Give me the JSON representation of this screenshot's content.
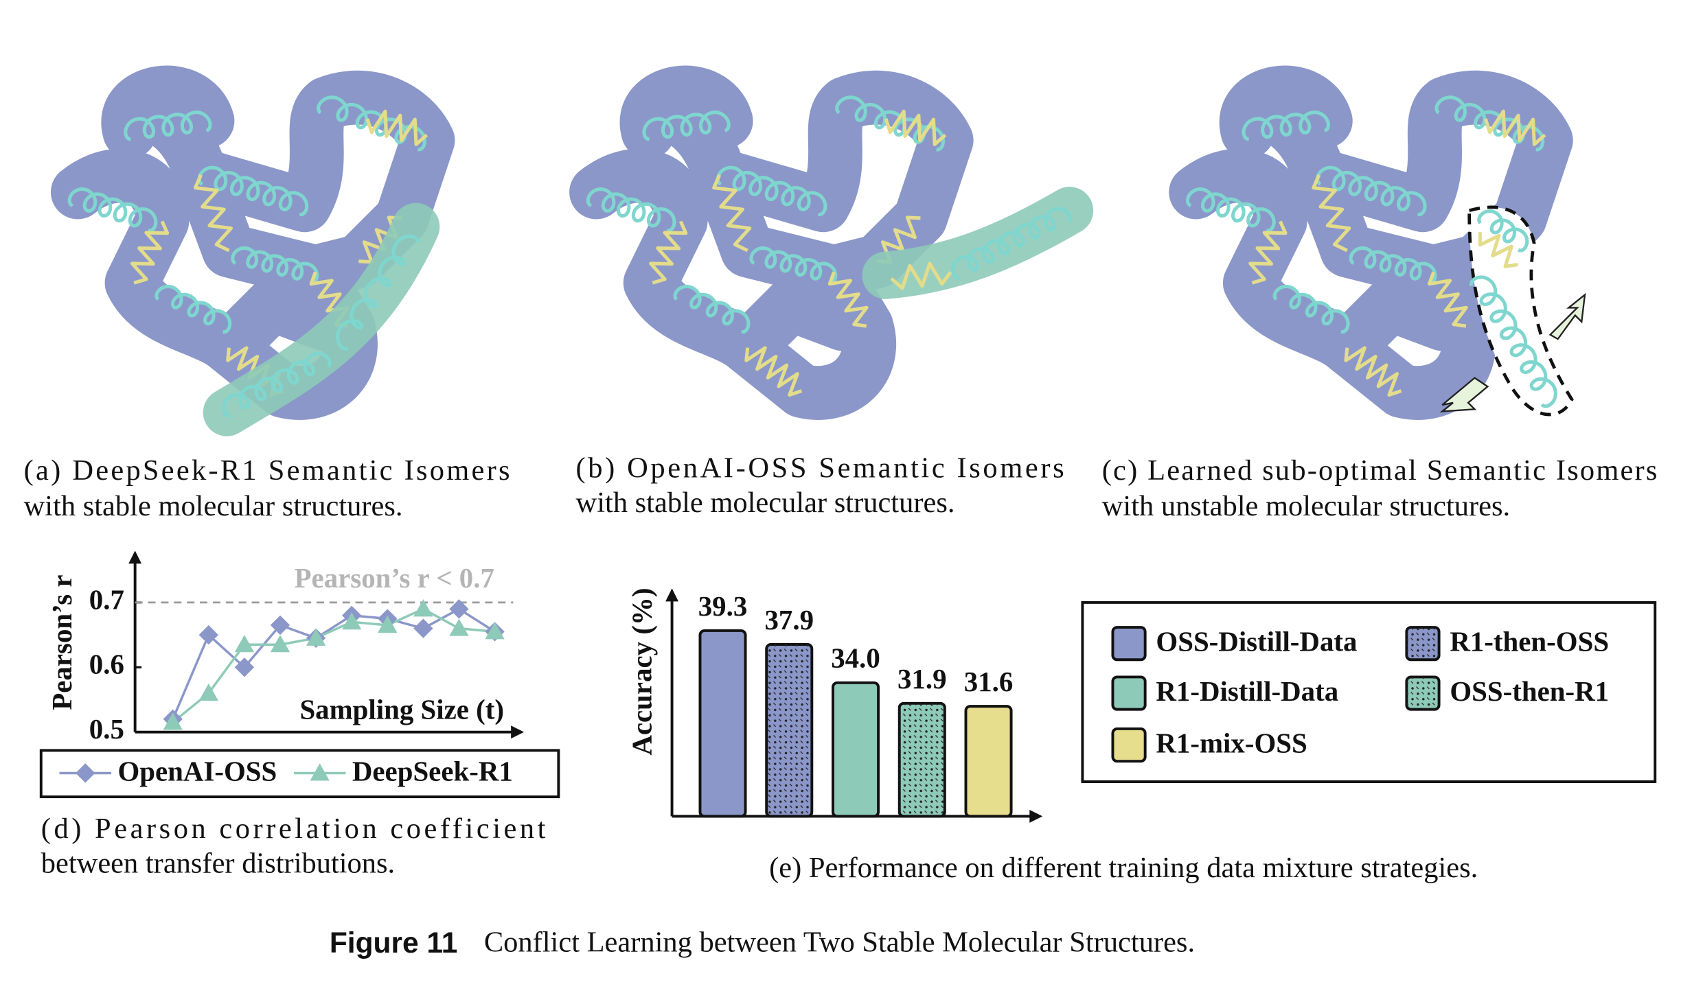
{
  "panels": [
    {
      "caption": [
        "(a) DeepSeek-R1 Semantic Isomers",
        "with stable molecular structures."
      ]
    },
    {
      "caption": [
        "(b) OpenAI-OSS Semantic Isomers",
        "with stable molecular structures."
      ]
    },
    {
      "caption": [
        "(c) Learned sub-optimal Semantic Isomers",
        "with unstable molecular structures."
      ]
    }
  ],
  "chart_data": [
    {
      "type": "line",
      "caption": [
        "(d) Pearson correlation coefficient",
        "between transfer distributions."
      ],
      "xlabel": "Sampling Size (t)",
      "ylabel": "Pearson’s r",
      "categories": [
        null,
        null,
        null,
        null,
        null,
        null,
        null,
        null,
        null,
        null
      ],
      "series": [
        {
          "name": "OpenAI-OSS",
          "color": "#8b97c9",
          "marker": "diamond",
          "values": [
            0.52,
            0.65,
            0.6,
            0.665,
            0.645,
            0.68,
            0.675,
            0.66,
            0.69,
            0.655
          ]
        },
        {
          "name": "DeepSeek-R1",
          "color": "#8ecab8",
          "marker": "triangle",
          "values": [
            0.515,
            0.56,
            0.635,
            0.635,
            0.645,
            0.67,
            0.665,
            0.69,
            0.66,
            0.655
          ]
        }
      ],
      "ylim": [
        0.5,
        0.78
      ],
      "yticks": [
        0.5,
        0.6,
        0.7
      ],
      "grid": false,
      "hline": {
        "value": 0.7,
        "label": "Pearson’s r < 0.7"
      }
    },
    {
      "type": "bar",
      "caption": "(e) Performance on different training data mixture strategies.",
      "ylabel": "Accuracy (%)",
      "categories": [
        "OSS-Distill-Data",
        "R1-then-OSS",
        "R1-Distill-Data",
        "OSS-then-R1",
        "R1-mix-OSS"
      ],
      "values": [
        39.3,
        37.9,
        34.0,
        31.9,
        31.6
      ],
      "value_labels": [
        "39.3",
        "37.9",
        "34.0",
        "31.9",
        "31.6"
      ],
      "colors": [
        "#8b97c9",
        "#8b97c9",
        "#8ecab8",
        "#8ecab8",
        "#e6dd8d"
      ],
      "hatched": [
        false,
        true,
        false,
        true,
        false
      ],
      "ylim": [
        20.4,
        43.6
      ]
    }
  ],
  "figure": {
    "label": "Figure 11",
    "caption": "Conflict Learning between Two Stable Molecular Structures."
  }
}
